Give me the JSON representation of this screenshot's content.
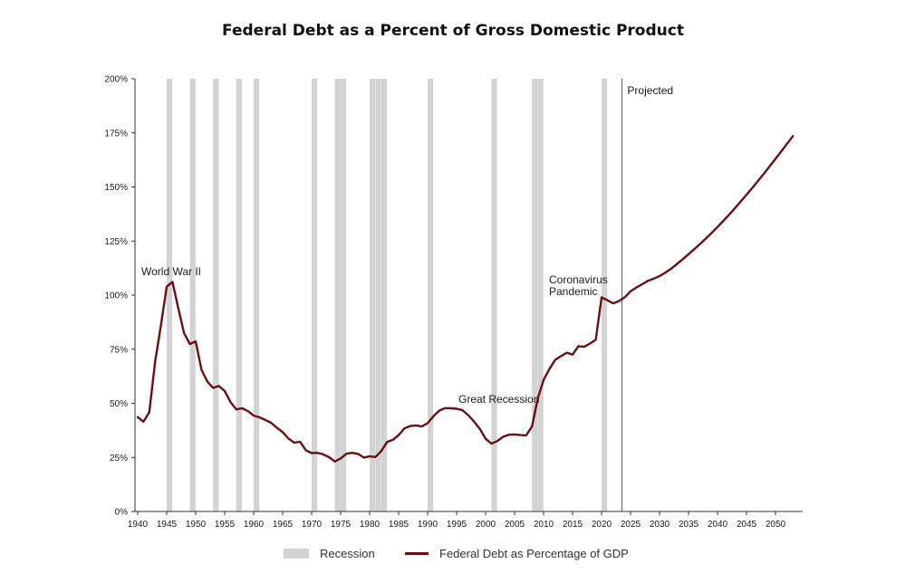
{
  "colors": {
    "debt_line": "#6b0f12",
    "recession": "#d3d3d3",
    "axis": "#333333",
    "projected_line": "#555555"
  },
  "chart_data": {
    "type": "line",
    "title": "Federal Debt as a Percent of Gross Domestic Product",
    "xlabel": "",
    "ylabel": "",
    "xlim": [
      1940,
      2054
    ],
    "ylim": [
      0,
      200
    ],
    "grid": false,
    "legend_position": "bottom",
    "x_ticks": [
      1940,
      1945,
      1950,
      1955,
      1960,
      1965,
      1970,
      1975,
      1980,
      1985,
      1990,
      1995,
      2000,
      2005,
      2010,
      2015,
      2020,
      2025,
      2030,
      2035,
      2040,
      2045,
      2050
    ],
    "y_ticks": [
      {
        "value": 0,
        "label": "0%"
      },
      {
        "value": 25,
        "label": "25%"
      },
      {
        "value": 50,
        "label": "50%"
      },
      {
        "value": 75,
        "label": "75%"
      },
      {
        "value": 100,
        "label": "100%"
      },
      {
        "value": 125,
        "label": "125%"
      },
      {
        "value": 150,
        "label": "150%"
      },
      {
        "value": 175,
        "label": "175%"
      },
      {
        "value": 200,
        "label": "200%"
      }
    ],
    "series": [
      {
        "name": "Federal Debt as Percentage of GDP",
        "x": [
          1940,
          1941,
          1942,
          1943,
          1944,
          1945,
          1946,
          1947,
          1948,
          1949,
          1950,
          1951,
          1952,
          1953,
          1954,
          1955,
          1956,
          1957,
          1958,
          1959,
          1960,
          1961,
          1962,
          1963,
          1964,
          1965,
          1966,
          1967,
          1968,
          1969,
          1970,
          1971,
          1972,
          1973,
          1974,
          1975,
          1976,
          1977,
          1978,
          1979,
          1980,
          1981,
          1982,
          1983,
          1984,
          1985,
          1986,
          1987,
          1988,
          1989,
          1990,
          1991,
          1992,
          1993,
          1994,
          1995,
          1996,
          1997,
          1998,
          1999,
          2000,
          2001,
          2002,
          2003,
          2004,
          2005,
          2006,
          2007,
          2008,
          2009,
          2010,
          2011,
          2012,
          2013,
          2014,
          2015,
          2016,
          2017,
          2018,
          2019,
          2020,
          2021,
          2022,
          2023,
          2024,
          2025,
          2026,
          2027,
          2028,
          2029,
          2030,
          2031,
          2032,
          2033,
          2034,
          2035,
          2036,
          2037,
          2038,
          2039,
          2040,
          2041,
          2042,
          2043,
          2044,
          2045,
          2046,
          2047,
          2048,
          2049,
          2050,
          2051,
          2052,
          2053
        ],
        "values": [
          43.6,
          41.5,
          45.9,
          69.2,
          86.0,
          103.9,
          106.1,
          93.9,
          82.4,
          77.4,
          78.6,
          65.5,
          60.1,
          57.1,
          58.0,
          55.7,
          50.6,
          47.2,
          47.7,
          46.4,
          44.3,
          43.5,
          42.3,
          41.0,
          38.7,
          36.7,
          33.7,
          31.8,
          32.2,
          28.3,
          27.0,
          27.1,
          26.4,
          25.1,
          23.1,
          24.5,
          26.7,
          27.1,
          26.6,
          24.9,
          25.5,
          25.2,
          27.9,
          32.1,
          33.1,
          35.3,
          38.4,
          39.5,
          39.8,
          39.3,
          40.8,
          44.0,
          46.6,
          47.8,
          47.7,
          47.5,
          46.8,
          44.5,
          41.6,
          38.2,
          33.6,
          31.4,
          32.5,
          34.5,
          35.5,
          35.6,
          35.3,
          35.2,
          39.3,
          52.3,
          60.8,
          65.8,
          70.1,
          71.8,
          73.4,
          72.5,
          76.4,
          76.1,
          77.6,
          79.4,
          99.0,
          97.6,
          96.2,
          97.3,
          99.0,
          101.8,
          103.5,
          105.0,
          106.6,
          107.6,
          108.8,
          110.4,
          112.2,
          114.4,
          116.6,
          118.9,
          121.3,
          123.7,
          126.2,
          128.8,
          131.5,
          134.3,
          137.2,
          140.2,
          143.3,
          146.4,
          149.6,
          152.9,
          156.2,
          159.6,
          163.0,
          166.5,
          170.0,
          173.5
        ]
      }
    ],
    "recessions": [
      [
        1945,
        1945.5
      ],
      [
        1949,
        1949.5
      ],
      [
        1953,
        1953.5
      ],
      [
        1957,
        1957.5
      ],
      [
        1960,
        1960.5
      ],
      [
        1970,
        1970.5
      ],
      [
        1974,
        1974.5
      ],
      [
        1975,
        1975.5
      ],
      [
        1980,
        1980.5
      ],
      [
        1981,
        1981.5
      ],
      [
        1982,
        1982.5
      ],
      [
        1990,
        1990.5
      ],
      [
        2001,
        2001.5
      ],
      [
        2008,
        2008.5
      ],
      [
        2009,
        2009.5
      ],
      [
        2020,
        2020.5
      ]
    ],
    "projection_start": 2023.5,
    "projection_label": "Projected",
    "annotations": [
      {
        "id": "ww2",
        "text": "World War II"
      },
      {
        "id": "great_recession",
        "text": "Great Recession"
      },
      {
        "id": "covid_line1",
        "text": "Coronavirus"
      },
      {
        "id": "covid_line2",
        "text": "Pandemic"
      }
    ],
    "legend": [
      {
        "type": "box",
        "label": "Recession"
      },
      {
        "type": "line",
        "label": "Federal Debt as Percentage of GDP"
      }
    ]
  }
}
